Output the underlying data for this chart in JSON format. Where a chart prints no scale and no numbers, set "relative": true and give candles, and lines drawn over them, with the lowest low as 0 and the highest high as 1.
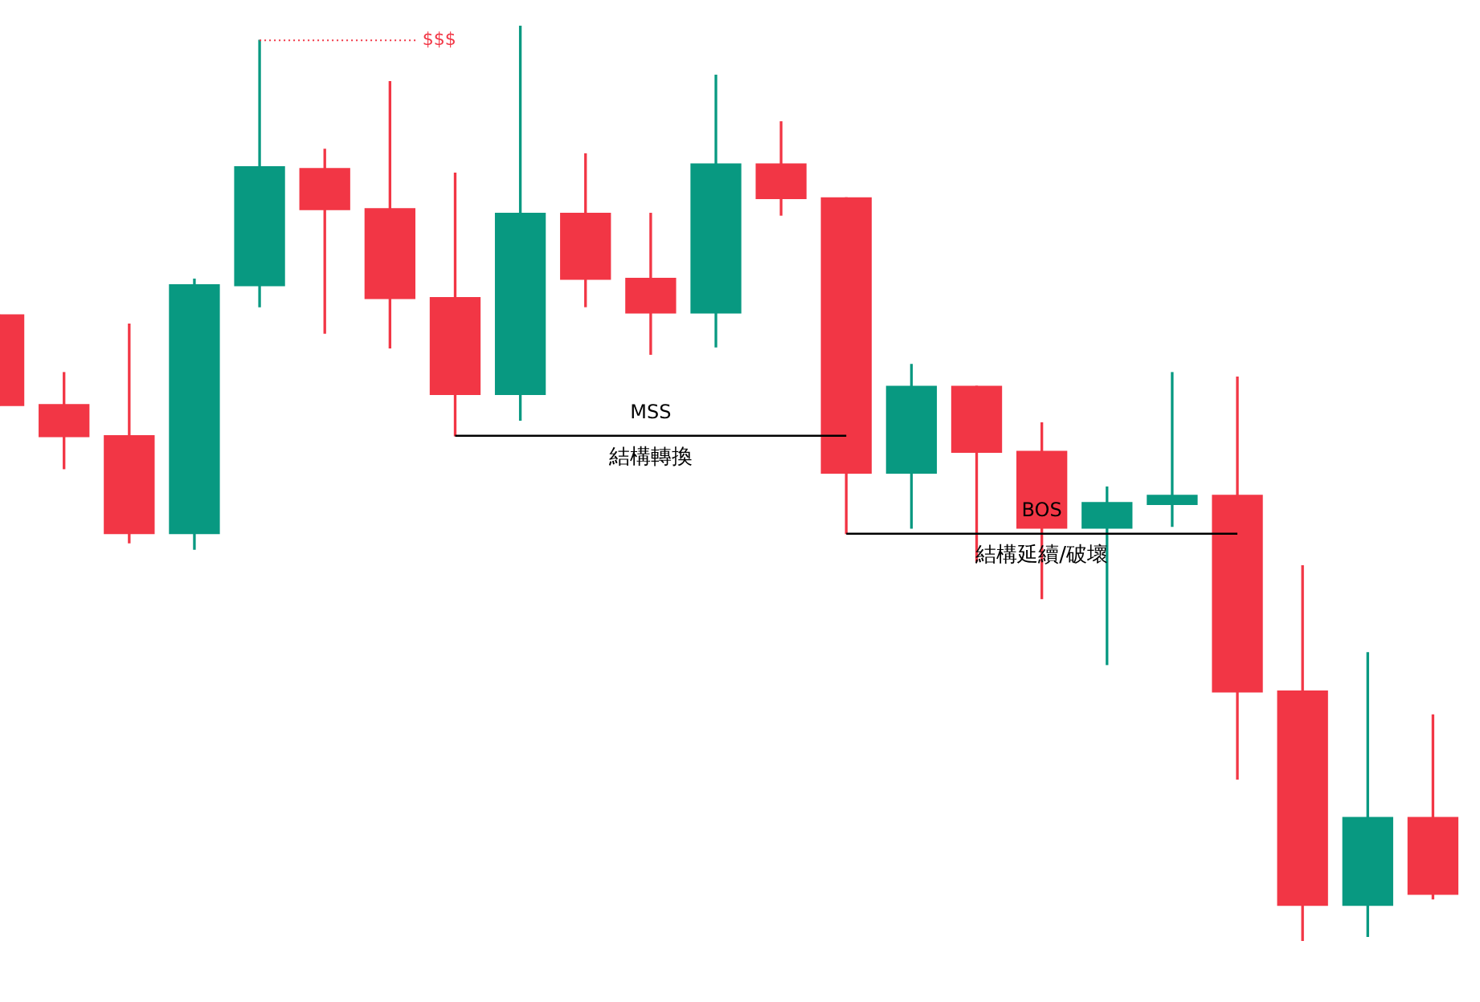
{
  "chart_data": {
    "type": "candlestick",
    "relative": true,
    "categories": [
      null,
      null,
      null,
      null,
      null,
      null,
      null,
      null,
      null,
      null,
      null,
      null,
      null,
      null,
      null,
      null,
      null,
      null,
      null,
      null,
      null,
      null,
      null
    ],
    "ohlc": [
      [
        0.684,
        0.684,
        0.585,
        0.585
      ],
      [
        0.586,
        0.621,
        0.516,
        0.551
      ],
      [
        0.552,
        0.674,
        0.435,
        0.445
      ],
      [
        0.445,
        0.723,
        0.428,
        0.717
      ],
      [
        0.716,
        0.984,
        0.693,
        0.846
      ],
      [
        0.844,
        0.865,
        0.664,
        0.799
      ],
      [
        0.8,
        0.939,
        0.648,
        0.702
      ],
      [
        0.703,
        0.839,
        0.552,
        0.597
      ],
      [
        0.597,
        1.0,
        0.569,
        0.795
      ],
      [
        0.795,
        0.86,
        0.693,
        0.723
      ],
      [
        0.724,
        0.795,
        0.641,
        0.686
      ],
      [
        0.686,
        0.946,
        0.649,
        0.849
      ],
      [
        0.849,
        0.895,
        0.793,
        0.811
      ],
      [
        0.812,
        0.812,
        0.445,
        0.511
      ],
      [
        0.511,
        0.63,
        0.451,
        0.606
      ],
      [
        0.606,
        0.606,
        0.415,
        0.534
      ],
      [
        0.535,
        0.566,
        0.374,
        0.451
      ],
      [
        0.451,
        0.496,
        0.302,
        0.479
      ],
      [
        0.477,
        0.621,
        0.453,
        0.487
      ],
      [
        0.487,
        0.616,
        0.177,
        0.272
      ],
      [
        0.273,
        0.41,
        0.0,
        0.039
      ],
      [
        0.039,
        0.315,
        0.005,
        0.135
      ],
      [
        0.135,
        0.247,
        0.046,
        0.051
      ]
    ],
    "colors": [
      "#f23645",
      "#f23645",
      "#f23645",
      "#089981",
      "#089981",
      "#f23645",
      "#f23645",
      "#f23645",
      "#089981",
      "#f23645",
      "#f23645",
      "#089981",
      "#f23645",
      "#f23645",
      "#089981",
      "#f23645",
      "#f23645",
      "#089981",
      "#089981",
      "#f23645",
      "#f23645",
      "#089981",
      "#f23645"
    ],
    "ref_lines": [
      {
        "axis": "y",
        "value": 0.984,
        "label": "$$$",
        "color": "#f23645",
        "line_style": "dotted"
      },
      {
        "axis": "y",
        "value": 0.552,
        "label": "MSS",
        "color": "#000000",
        "line_style": "solid"
      },
      {
        "axis": "y",
        "value": 0.445,
        "label": "BOS",
        "color": "#000000",
        "line_style": "solid"
      }
    ],
    "annotations": [
      "結構轉換",
      "結構延續/破壞"
    ]
  }
}
